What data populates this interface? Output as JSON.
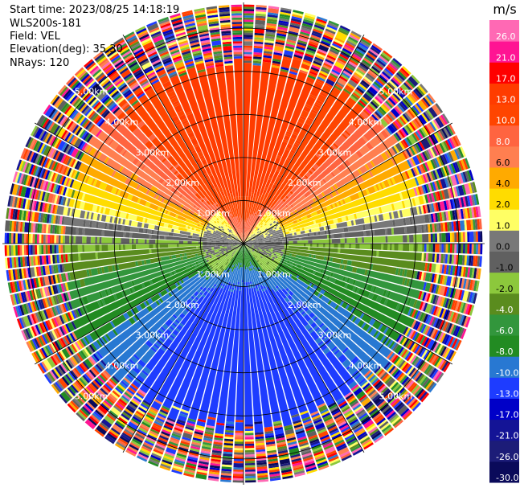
{
  "header": {
    "start_time": "Start time: 2023/08/25 14:18:19",
    "instrument": "WLS200s-181",
    "field": "Field: VEL",
    "elevation": "Elevation(deg): 35.30",
    "nrays": "NRays: 120"
  },
  "chart_data": {
    "type": "heatmap",
    "projection": "polar-ppi",
    "field": "VEL",
    "nrays": 120,
    "elevation_deg": 35.3,
    "range_rings_km": [
      1,
      2,
      3,
      4,
      5
    ],
    "range_ring_labels": [
      "1.00km",
      "2.00km",
      "3.00km",
      "4.00km",
      "5.00km"
    ],
    "spokes_deg": [
      0,
      30,
      60,
      90,
      120,
      150,
      180,
      210,
      240,
      270,
      300,
      330
    ],
    "max_range_km": 5.6,
    "colorbar": {
      "unit": "m/s",
      "levels": [
        "-30.0",
        "-26.0",
        "-21.0",
        "-17.0",
        "-13.0",
        "-10.0",
        "-8.0",
        "-6.0",
        "-4.0",
        "-2.0",
        "-1.0",
        "0.0",
        "1.0",
        "2.0",
        "4.0",
        "6.0",
        "8.0",
        "10.0",
        "13.0",
        "17.0",
        "21.0",
        "26.0"
      ],
      "colors": [
        "#0a0a5a",
        "#1c1c78",
        "#141496",
        "#0000c8",
        "#1e3cff",
        "#2878d2",
        "#228b22",
        "#32963c",
        "#5a8c1e",
        "#8cc83c",
        "#606060",
        "#787878",
        "#ffff64",
        "#ffdc00",
        "#ffaa00",
        "#ff7f50",
        "#ff6440",
        "#ff4500",
        "#ff3c00",
        "#ff0000",
        "#ff1493",
        "#ff69b4"
      ]
    }
  }
}
